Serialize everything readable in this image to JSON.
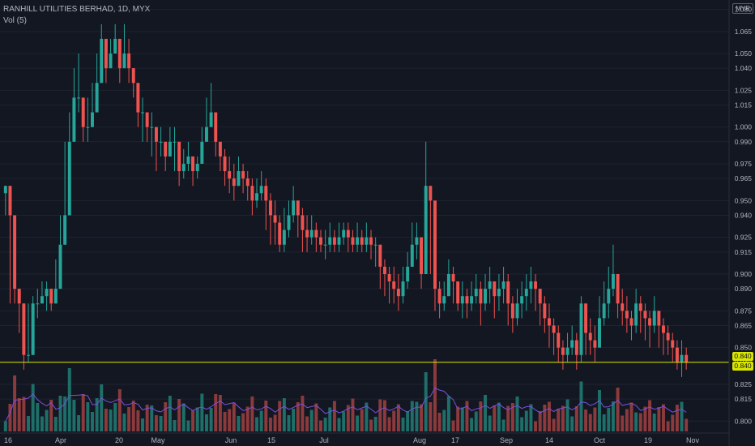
{
  "legend": {
    "symbol_line": "RANHILL UTILITIES BERHAD, 1D, MYX",
    "vol_line": "Vol (5)"
  },
  "price_axis": {
    "unit": "MYR",
    "current_label": "0.840",
    "current_label_2": "0.840"
  },
  "chart_data": {
    "type": "candlestick",
    "title": "RANHILL UTILITIES BERHAD, 1D, MYX",
    "ylim": [
      0.793,
      1.082
    ],
    "y_ticks": [
      "1.080",
      "1.065",
      "1.050",
      "1.040",
      "1.025",
      "1.015",
      "1.000",
      "0.990",
      "0.975",
      "0.965",
      "0.950",
      "0.940",
      "0.925",
      "0.915",
      "0.900",
      "0.890",
      "0.875",
      "0.865",
      "0.850",
      "0.840",
      "0.825",
      "0.815",
      "0.800"
    ],
    "x_ticks": [
      "16",
      "Apr",
      "20",
      "May",
      "Jun",
      "15",
      "Jul",
      "Aug",
      "17",
      "Sep",
      "14",
      "Oct",
      "19",
      "Nov"
    ],
    "current_price": 0.84,
    "colors": {
      "up": "#26a69a",
      "down": "#ef5350",
      "vol_up": "#1e6f69",
      "vol_down": "#8c3a3c",
      "vol_ma": "#7b4fe0",
      "price_line": "#d9e600"
    },
    "series": [
      {
        "name": "",
        "candles": [
          [
            0.96,
            0.955,
            0.94
          ],
          [
            0.94,
            0.96,
            0.88
          ],
          [
            0.89,
            0.94,
            0.88
          ],
          [
            0.88,
            0.885,
            0.86
          ],
          [
            0.845,
            0.86,
            0.835
          ],
          [
            0.845,
            0.88,
            0.84
          ],
          [
            0.88,
            0.885,
            0.845
          ],
          [
            0.88,
            0.89,
            0.87
          ],
          [
            0.885,
            0.895,
            0.88
          ],
          [
            0.89,
            0.895,
            0.875
          ],
          [
            0.88,
            0.89,
            0.875
          ],
          [
            0.89,
            0.91,
            0.88
          ],
          [
            0.92,
            0.94,
            0.91
          ],
          [
            0.94,
            0.99,
            0.93
          ],
          [
            0.99,
            1.01,
            0.98
          ],
          [
            1.02,
            1.04,
            1.01
          ],
          [
            1.02,
            1.05,
            1.01
          ],
          [
            1.0,
            1.01,
            0.99
          ],
          [
            1.0,
            1.02,
            0.99
          ],
          [
            1.01,
            1.03,
            1.0
          ],
          [
            1.03,
            1.05,
            1.02
          ],
          [
            1.06,
            1.07,
            1.04
          ],
          [
            1.04,
            1.06,
            1.03
          ],
          [
            1.05,
            1.06,
            1.04
          ],
          [
            1.06,
            1.07,
            1.05
          ],
          [
            1.04,
            1.055,
            1.03
          ],
          [
            1.05,
            1.07,
            1.04
          ],
          [
            1.04,
            1.06,
            1.03
          ],
          [
            1.03,
            1.04,
            1.02
          ],
          [
            1.01,
            1.03,
            1.0
          ],
          [
            1.01,
            1.02,
            0.99
          ],
          [
            1.0,
            1.01,
            0.99
          ],
          [
            1.0,
            1.01,
            0.98
          ],
          [
            0.99,
            1.0,
            0.97
          ],
          [
            0.99,
            1.0,
            0.98
          ],
          [
            0.98,
            0.99,
            0.97
          ],
          [
            0.99,
            1.0,
            0.98
          ],
          [
            0.99,
            1.0,
            0.97
          ],
          [
            0.97,
            0.99,
            0.96
          ],
          [
            0.975,
            0.985,
            0.965
          ],
          [
            0.98,
            0.99,
            0.97
          ],
          [
            0.97,
            0.98,
            0.96
          ],
          [
            0.975,
            0.98,
            0.965
          ],
          [
            0.99,
            1.0,
            0.98
          ],
          [
            1.0,
            1.02,
            0.99
          ],
          [
            1.01,
            1.03,
            1.0
          ],
          [
            0.99,
            1.0,
            0.98
          ],
          [
            0.98,
            0.99,
            0.97
          ],
          [
            0.97,
            0.985,
            0.96
          ],
          [
            0.965,
            0.98,
            0.955
          ],
          [
            0.96,
            0.975,
            0.95
          ],
          [
            0.97,
            0.98,
            0.96
          ],
          [
            0.965,
            0.975,
            0.955
          ],
          [
            0.96,
            0.97,
            0.95
          ],
          [
            0.95,
            0.965,
            0.94
          ],
          [
            0.955,
            0.965,
            0.945
          ],
          [
            0.96,
            0.97,
            0.95
          ],
          [
            0.95,
            0.965,
            0.93
          ],
          [
            0.94,
            0.955,
            0.92
          ],
          [
            0.935,
            0.95,
            0.92
          ],
          [
            0.92,
            0.94,
            0.915
          ],
          [
            0.93,
            0.945,
            0.915
          ],
          [
            0.94,
            0.95,
            0.925
          ],
          [
            0.95,
            0.96,
            0.935
          ],
          [
            0.94,
            0.95,
            0.925
          ],
          [
            0.93,
            0.945,
            0.915
          ],
          [
            0.925,
            0.94,
            0.915
          ],
          [
            0.93,
            0.94,
            0.92
          ],
          [
            0.925,
            0.935,
            0.915
          ],
          [
            0.92,
            0.93,
            0.915
          ],
          [
            0.92,
            0.93,
            0.91
          ],
          [
            0.925,
            0.935,
            0.915
          ],
          [
            0.92,
            0.93,
            0.915
          ],
          [
            0.925,
            0.935,
            0.915
          ],
          [
            0.93,
            0.935,
            0.92
          ],
          [
            0.925,
            0.935,
            0.915
          ],
          [
            0.92,
            0.93,
            0.915
          ],
          [
            0.925,
            0.935,
            0.915
          ],
          [
            0.92,
            0.93,
            0.915
          ],
          [
            0.925,
            0.935,
            0.915
          ],
          [
            0.92,
            0.93,
            0.91
          ],
          [
            0.92,
            0.925,
            0.905
          ],
          [
            0.905,
            0.92,
            0.89
          ],
          [
            0.9,
            0.91,
            0.885
          ],
          [
            0.895,
            0.905,
            0.88
          ],
          [
            0.89,
            0.905,
            0.88
          ],
          [
            0.885,
            0.9,
            0.875
          ],
          [
            0.895,
            0.905,
            0.88
          ],
          [
            0.905,
            0.915,
            0.89
          ],
          [
            0.92,
            0.935,
            0.905
          ],
          [
            0.925,
            0.935,
            0.91
          ],
          [
            0.9,
            0.92,
            0.89
          ],
          [
            0.96,
            0.99,
            0.945
          ],
          [
            0.95,
            0.96,
            0.9
          ],
          [
            0.89,
            0.905,
            0.875
          ],
          [
            0.88,
            0.895,
            0.87
          ],
          [
            0.885,
            0.895,
            0.875
          ],
          [
            0.9,
            0.91,
            0.885
          ],
          [
            0.895,
            0.905,
            0.88
          ],
          [
            0.88,
            0.895,
            0.875
          ],
          [
            0.885,
            0.895,
            0.87
          ],
          [
            0.88,
            0.89,
            0.87
          ],
          [
            0.885,
            0.895,
            0.875
          ],
          [
            0.89,
            0.9,
            0.88
          ],
          [
            0.88,
            0.895,
            0.865
          ],
          [
            0.89,
            0.9,
            0.875
          ],
          [
            0.895,
            0.905,
            0.88
          ],
          [
            0.885,
            0.895,
            0.87
          ],
          [
            0.89,
            0.9,
            0.875
          ],
          [
            0.895,
            0.905,
            0.88
          ],
          [
            0.88,
            0.9,
            0.865
          ],
          [
            0.87,
            0.885,
            0.86
          ],
          [
            0.88,
            0.89,
            0.865
          ],
          [
            0.885,
            0.895,
            0.87
          ],
          [
            0.89,
            0.9,
            0.875
          ],
          [
            0.895,
            0.905,
            0.88
          ],
          [
            0.89,
            0.9,
            0.875
          ],
          [
            0.88,
            0.89,
            0.865
          ],
          [
            0.87,
            0.885,
            0.86
          ],
          [
            0.865,
            0.88,
            0.85
          ],
          [
            0.86,
            0.87,
            0.845
          ],
          [
            0.85,
            0.865,
            0.84
          ],
          [
            0.845,
            0.855,
            0.835
          ],
          [
            0.85,
            0.86,
            0.84
          ],
          [
            0.855,
            0.865,
            0.845
          ],
          [
            0.845,
            0.86,
            0.835
          ],
          [
            0.88,
            0.885,
            0.84
          ],
          [
            0.86,
            0.875,
            0.845
          ],
          [
            0.855,
            0.87,
            0.845
          ],
          [
            0.85,
            0.865,
            0.84
          ],
          [
            0.87,
            0.885,
            0.855
          ],
          [
            0.88,
            0.895,
            0.865
          ],
          [
            0.89,
            0.905,
            0.87
          ],
          [
            0.9,
            0.92,
            0.885
          ],
          [
            0.88,
            0.9,
            0.87
          ],
          [
            0.875,
            0.89,
            0.865
          ],
          [
            0.87,
            0.885,
            0.86
          ],
          [
            0.865,
            0.875,
            0.855
          ],
          [
            0.88,
            0.89,
            0.86
          ],
          [
            0.875,
            0.885,
            0.86
          ],
          [
            0.87,
            0.88,
            0.855
          ],
          [
            0.865,
            0.875,
            0.85
          ],
          [
            0.875,
            0.885,
            0.86
          ],
          [
            0.865,
            0.875,
            0.85
          ],
          [
            0.86,
            0.87,
            0.845
          ],
          [
            0.855,
            0.865,
            0.845
          ],
          [
            0.85,
            0.86,
            0.84
          ],
          [
            0.84,
            0.855,
            0.835
          ],
          [
            0.845,
            0.855,
            0.83
          ],
          [
            0.84,
            0.85,
            0.835
          ]
        ]
      }
    ]
  }
}
